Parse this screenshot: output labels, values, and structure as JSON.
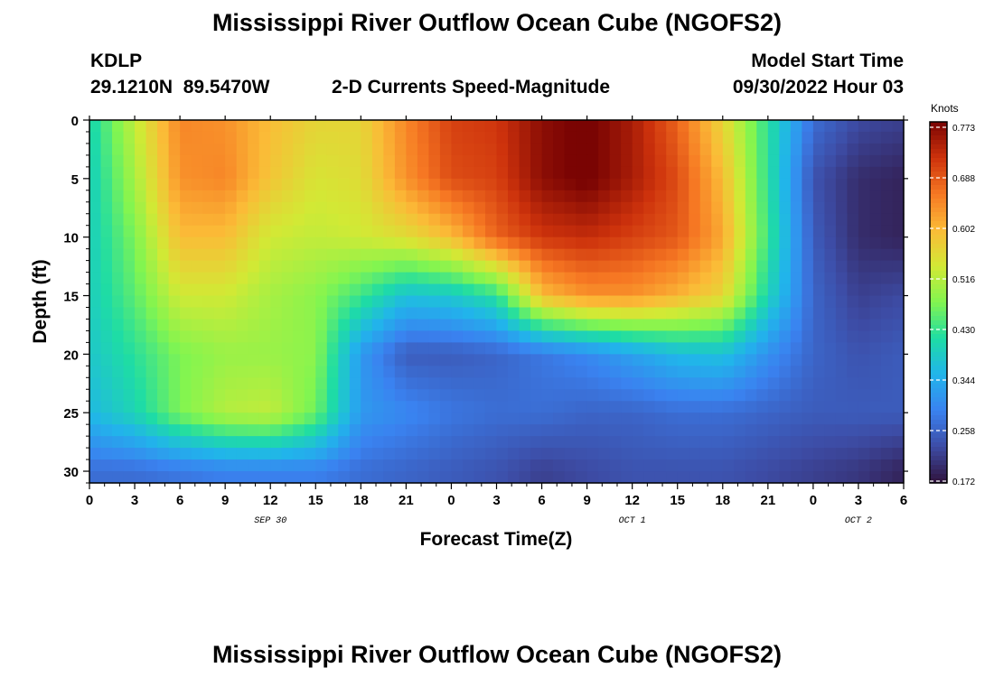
{
  "page": {
    "title": "Mississippi River Outflow Ocean Cube (NGOFS2)",
    "station": "KDLP",
    "coordinates": "29.1210N  89.5470W",
    "subtitle": "2-D Currents Speed-Magnitude",
    "model_start_label": "Model Start Time",
    "model_start_value": "09/30/2022 Hour 03",
    "footer_title": "Mississippi River Outflow Ocean Cube (NGOFS2)"
  },
  "chart_data": {
    "type": "heatmap",
    "title": "2-D Currents Speed-Magnitude",
    "xlabel": "Forecast Time(Z)",
    "ylabel": "Depth (ft)",
    "x_range": [
      0,
      54
    ],
    "x_unit": "forecast hours from 00Z Sep 30",
    "x_tick_labels": [
      "0",
      "3",
      "6",
      "9",
      "12",
      "15",
      "18",
      "21",
      "0",
      "3",
      "6",
      "9",
      "12",
      "15",
      "18",
      "21",
      "0",
      "3",
      "6"
    ],
    "date_labels": [
      {
        "label": "SEP 30",
        "hour": 12
      },
      {
        "label": "OCT 1",
        "hour": 36
      },
      {
        "label": "OCT 2",
        "hour": 51
      }
    ],
    "y_range": [
      0,
      31
    ],
    "y_ticks": [
      0,
      5,
      10,
      15,
      20,
      25,
      30
    ],
    "y_reversed": true,
    "colorbar": {
      "title": "Knots",
      "min": 0.172,
      "max": 0.773,
      "ticks": [
        "0.773",
        "0.688",
        "0.602",
        "0.516",
        "0.430",
        "0.344",
        "0.258",
        "0.172"
      ],
      "colormap": "turbo"
    },
    "grid_x": [
      0,
      3,
      6,
      9,
      12,
      15,
      18,
      21,
      24,
      27,
      30,
      33,
      36,
      39,
      42,
      45,
      48,
      51,
      54
    ],
    "grid_y": [
      0,
      5,
      10,
      15,
      20,
      25,
      30
    ],
    "z_knots": [
      [
        0.4,
        0.52,
        0.64,
        0.63,
        0.59,
        0.56,
        0.56,
        0.64,
        0.7,
        0.71,
        0.76,
        0.78,
        0.74,
        0.67,
        0.56,
        0.42,
        0.27,
        0.23,
        0.22
      ],
      [
        0.39,
        0.5,
        0.63,
        0.64,
        0.58,
        0.54,
        0.55,
        0.63,
        0.69,
        0.7,
        0.76,
        0.78,
        0.74,
        0.69,
        0.59,
        0.42,
        0.24,
        0.2,
        0.19
      ],
      [
        0.39,
        0.47,
        0.59,
        0.59,
        0.53,
        0.52,
        0.53,
        0.55,
        0.59,
        0.67,
        0.71,
        0.72,
        0.7,
        0.68,
        0.61,
        0.43,
        0.25,
        0.2,
        0.19
      ],
      [
        0.39,
        0.45,
        0.53,
        0.53,
        0.5,
        0.48,
        0.43,
        0.37,
        0.38,
        0.42,
        0.59,
        0.63,
        0.63,
        0.6,
        0.56,
        0.4,
        0.26,
        0.22,
        0.23
      ],
      [
        0.38,
        0.42,
        0.47,
        0.49,
        0.49,
        0.48,
        0.32,
        0.25,
        0.25,
        0.26,
        0.28,
        0.3,
        0.33,
        0.36,
        0.37,
        0.31,
        0.26,
        0.24,
        0.25
      ],
      [
        0.36,
        0.4,
        0.47,
        0.51,
        0.52,
        0.46,
        0.32,
        0.3,
        0.28,
        0.27,
        0.27,
        0.26,
        0.26,
        0.27,
        0.27,
        0.26,
        0.25,
        0.25,
        0.25
      ],
      [
        0.27,
        0.27,
        0.28,
        0.29,
        0.29,
        0.29,
        0.27,
        0.26,
        0.25,
        0.24,
        0.22,
        0.23,
        0.24,
        0.24,
        0.24,
        0.23,
        0.22,
        0.21,
        0.19
      ]
    ]
  }
}
